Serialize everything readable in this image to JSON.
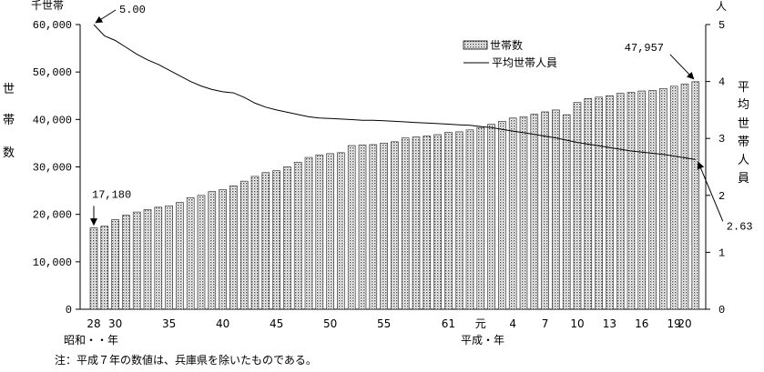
{
  "chart_data": {
    "type": "bar+line",
    "left_axis_unit": "千世帯",
    "left_axis_label": [
      "世",
      "帯",
      "数"
    ],
    "right_axis_unit": "人",
    "right_axis_label": [
      "平",
      "均",
      "世",
      "帯",
      "人",
      "員"
    ],
    "left_ticks": [
      "0",
      "10,000",
      "20,000",
      "30,000",
      "40,000",
      "50,000",
      "60,000"
    ],
    "right_ticks": [
      "0",
      "1",
      "2",
      "3",
      "4",
      "5"
    ],
    "ylim_left": [
      0,
      60000
    ],
    "ylim_right": [
      0,
      5
    ],
    "x_tick_labels": [
      {
        "i": 0,
        "text": "28"
      },
      {
        "i": 2,
        "text": "30"
      },
      {
        "i": 7,
        "text": "35"
      },
      {
        "i": 12,
        "text": "40"
      },
      {
        "i": 17,
        "text": "45"
      },
      {
        "i": 22,
        "text": "50"
      },
      {
        "i": 27,
        "text": "55"
      },
      {
        "i": 33,
        "text": "61"
      },
      {
        "i": 36,
        "text": "元"
      },
      {
        "i": 39,
        "text": "4"
      },
      {
        "i": 42,
        "text": "7"
      },
      {
        "i": 45,
        "text": "10"
      },
      {
        "i": 48,
        "text": "13"
      },
      {
        "i": 51,
        "text": "16"
      },
      {
        "i": 54,
        "text": "19"
      },
      {
        "i": 55,
        "text": "20"
      }
    ],
    "era_labels": {
      "showa": "昭和・・年",
      "heisei": "平成・年"
    },
    "series": [
      {
        "name": "世帯数",
        "kind": "bar",
        "values": [
          17180,
          17500,
          18900,
          19800,
          20500,
          21000,
          21500,
          21800,
          22500,
          23500,
          24000,
          24800,
          25200,
          26000,
          27000,
          28000,
          28800,
          29200,
          30000,
          31000,
          32000,
          32500,
          32800,
          33000,
          34500,
          34600,
          34700,
          35000,
          35300,
          36100,
          36300,
          36500,
          36800,
          37300,
          37400,
          37800,
          38300,
          39000,
          39600,
          40300,
          40600,
          41100,
          41600,
          42000,
          41000,
          43600,
          44400,
          44700,
          45000,
          45500,
          45700,
          46000,
          46100,
          46500,
          47000,
          47500,
          47957
        ]
      },
      {
        "name": "平均世帯人員",
        "kind": "line",
        "values": [
          5.0,
          4.8,
          4.72,
          4.6,
          4.48,
          4.38,
          4.3,
          4.2,
          4.1,
          4.0,
          3.92,
          3.86,
          3.82,
          3.8,
          3.72,
          3.62,
          3.55,
          3.5,
          3.46,
          3.42,
          3.38,
          3.36,
          3.35,
          3.34,
          3.33,
          3.32,
          3.32,
          3.31,
          3.3,
          3.29,
          3.28,
          3.27,
          3.26,
          3.25,
          3.24,
          3.23,
          3.21,
          3.19,
          3.16,
          3.13,
          3.1,
          3.07,
          3.04,
          3.01,
          2.97,
          2.93,
          2.9,
          2.87,
          2.84,
          2.81,
          2.78,
          2.76,
          2.74,
          2.72,
          2.69,
          2.66,
          2.63
        ]
      }
    ],
    "annotations": [
      {
        "text": "5.00",
        "series": "平均世帯人員",
        "i": 0
      },
      {
        "text": "17,180",
        "series": "世帯数",
        "i": 0
      },
      {
        "text": "47,957",
        "series": "世帯数",
        "i": 56
      },
      {
        "text": "2.63",
        "series": "平均世帯人員",
        "i": 56
      }
    ],
    "legend": {
      "position": "top-right",
      "items": [
        "世帯数",
        "平均世帯人員"
      ]
    }
  },
  "note": "注：平成７年の数値は、兵庫県を除いたものである。"
}
